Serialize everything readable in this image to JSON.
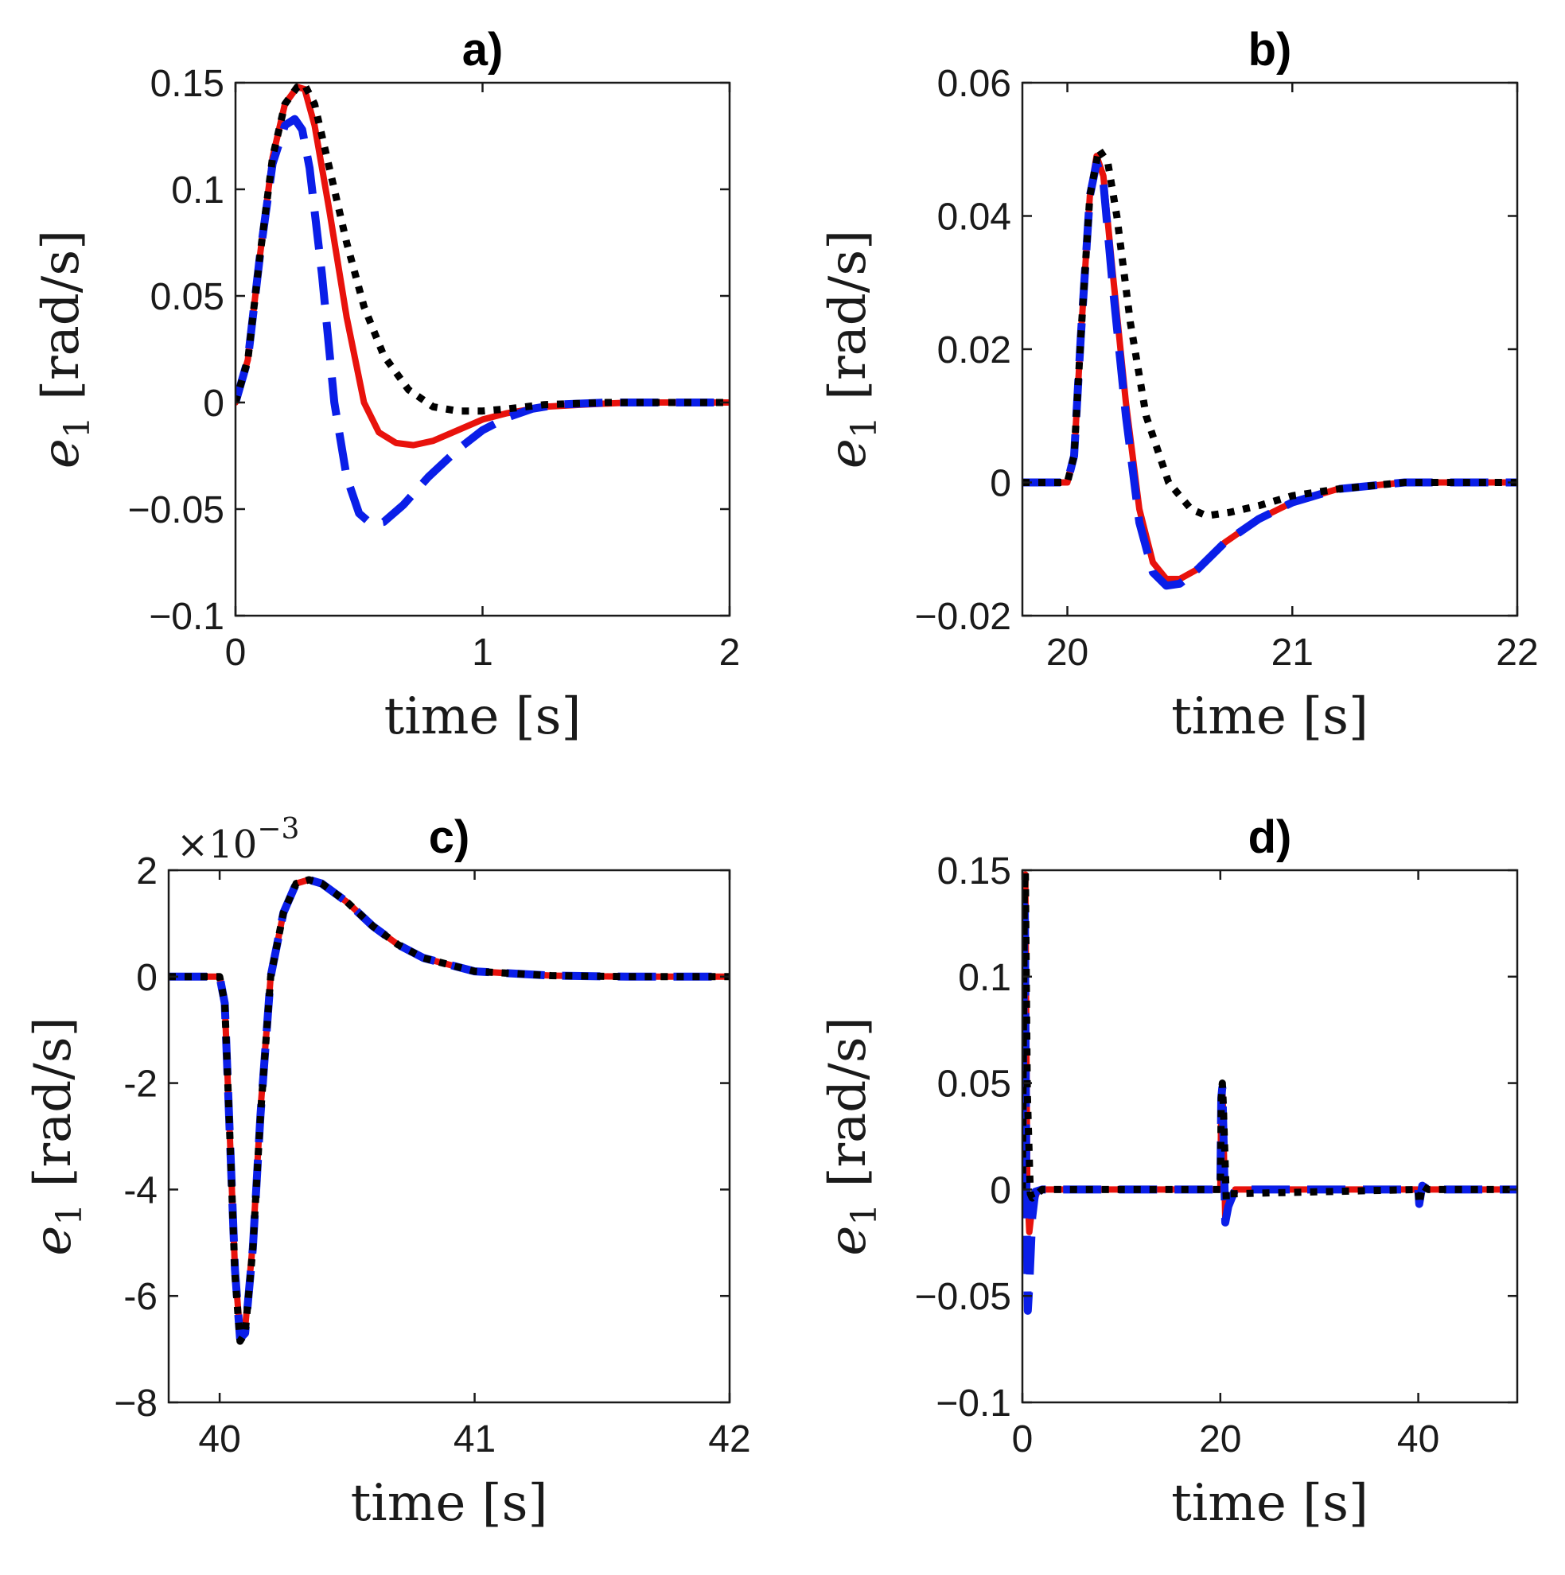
{
  "chart_data": [
    {
      "type": "line",
      "title": "a)",
      "xlabel": "time [s]",
      "ylabel": "e1 [rad/s]",
      "xlim": [
        0,
        2
      ],
      "ylim": [
        -0.1,
        0.15
      ],
      "xticks": [
        0,
        1,
        2
      ],
      "xtick_labels": [
        "0",
        "1",
        "2"
      ],
      "yticks": [
        -0.1,
        -0.05,
        0,
        0.05,
        0.1,
        0.15
      ],
      "ytick_labels": [
        "−0.1",
        "−0.05",
        "0",
        "0.05",
        "0.1",
        "0.15"
      ],
      "y_exponent": "",
      "series": [
        {
          "name": "red solid",
          "style": "solid",
          "color": "#e8120c",
          "x": [
            0,
            0.05,
            0.1,
            0.15,
            0.2,
            0.25,
            0.28,
            0.32,
            0.38,
            0.45,
            0.52,
            0.58,
            0.65,
            0.72,
            0.8,
            0.9,
            1.0,
            1.1,
            1.25,
            1.4,
            1.6,
            1.8,
            2.0
          ],
          "y": [
            0,
            0.02,
            0.07,
            0.115,
            0.14,
            0.148,
            0.147,
            0.13,
            0.09,
            0.04,
            0.0,
            -0.014,
            -0.019,
            -0.02,
            -0.018,
            -0.013,
            -0.008,
            -0.005,
            -0.002,
            -0.001,
            0,
            0,
            0
          ]
        },
        {
          "name": "blue dashed",
          "style": "dashed",
          "color": "#0a1ee8",
          "x": [
            0,
            0.05,
            0.1,
            0.15,
            0.2,
            0.24,
            0.27,
            0.3,
            0.35,
            0.4,
            0.45,
            0.5,
            0.55,
            0.6,
            0.68,
            0.78,
            0.9,
            1.0,
            1.1,
            1.2,
            1.3,
            1.5,
            1.7,
            2.0
          ],
          "y": [
            0,
            0.02,
            0.07,
            0.112,
            0.13,
            0.133,
            0.128,
            0.11,
            0.06,
            0.0,
            -0.035,
            -0.052,
            -0.057,
            -0.056,
            -0.048,
            -0.035,
            -0.022,
            -0.013,
            -0.007,
            -0.003,
            -0.001,
            0,
            0,
            0
          ]
        },
        {
          "name": "black dotted",
          "style": "dotted",
          "color": "#000000",
          "x": [
            0,
            0.05,
            0.1,
            0.15,
            0.2,
            0.25,
            0.28,
            0.32,
            0.38,
            0.45,
            0.52,
            0.6,
            0.7,
            0.8,
            0.9,
            1.0,
            1.1,
            1.25,
            1.5,
            1.8,
            2.0
          ],
          "y": [
            0,
            0.02,
            0.07,
            0.115,
            0.14,
            0.148,
            0.149,
            0.14,
            0.11,
            0.075,
            0.045,
            0.022,
            0.006,
            -0.002,
            -0.004,
            -0.004,
            -0.003,
            -0.001,
            0,
            0,
            0
          ]
        }
      ]
    },
    {
      "type": "line",
      "title": "b)",
      "xlabel": "time [s]",
      "ylabel": "e1 [rad/s]",
      "xlim": [
        19.8,
        22
      ],
      "ylim": [
        -0.02,
        0.06
      ],
      "xticks": [
        20,
        21,
        22
      ],
      "xtick_labels": [
        "20",
        "21",
        "22"
      ],
      "yticks": [
        -0.02,
        0,
        0.02,
        0.04,
        0.06
      ],
      "ytick_labels": [
        "−0.02",
        "0",
        "0.02",
        "0.04",
        "0.06"
      ],
      "y_exponent": "",
      "series": [
        {
          "name": "red solid",
          "style": "solid",
          "color": "#e8120c",
          "x": [
            19.8,
            20.0,
            20.03,
            20.06,
            20.1,
            20.13,
            20.16,
            20.2,
            20.26,
            20.32,
            20.38,
            20.44,
            20.5,
            20.58,
            20.7,
            20.85,
            21.0,
            21.2,
            21.5,
            22.0
          ],
          "y": [
            0,
            0,
            0.004,
            0.022,
            0.043,
            0.049,
            0.046,
            0.032,
            0.012,
            -0.004,
            -0.012,
            -0.0145,
            -0.0145,
            -0.013,
            -0.009,
            -0.0055,
            -0.003,
            -0.001,
            0,
            0
          ]
        },
        {
          "name": "blue dashed",
          "style": "dashed",
          "color": "#0a1ee8",
          "x": [
            19.8,
            20.0,
            20.03,
            20.06,
            20.1,
            20.13,
            20.16,
            20.2,
            20.26,
            20.32,
            20.38,
            20.44,
            20.5,
            20.58,
            20.7,
            20.85,
            21.0,
            21.2,
            21.5,
            22.0
          ],
          "y": [
            0,
            0,
            0.004,
            0.022,
            0.043,
            0.048,
            0.045,
            0.03,
            0.01,
            -0.006,
            -0.0135,
            -0.0155,
            -0.0152,
            -0.013,
            -0.009,
            -0.0055,
            -0.003,
            -0.001,
            0,
            0
          ]
        },
        {
          "name": "black dotted",
          "style": "dotted",
          "color": "#000000",
          "x": [
            19.8,
            20.0,
            20.03,
            20.06,
            20.1,
            20.14,
            20.18,
            20.22,
            20.28,
            20.35,
            20.45,
            20.55,
            20.62,
            20.72,
            20.85,
            21.0,
            21.2,
            21.5,
            22.0
          ],
          "y": [
            0,
            0,
            0.004,
            0.022,
            0.043,
            0.05,
            0.048,
            0.04,
            0.024,
            0.01,
            0.0,
            -0.004,
            -0.005,
            -0.0045,
            -0.0035,
            -0.002,
            -0.001,
            0,
            0
          ]
        }
      ]
    },
    {
      "type": "line",
      "title": "c)",
      "xlabel": "time [s]",
      "ylabel": "e1 [rad/s]",
      "xlim": [
        39.8,
        42
      ],
      "ylim": [
        -8,
        2
      ],
      "xticks": [
        40,
        41,
        42
      ],
      "xtick_labels": [
        "40",
        "41",
        "42"
      ],
      "yticks": [
        -8,
        -6,
        -4,
        -2,
        0,
        2
      ],
      "ytick_labels": [
        "−8",
        "-6",
        "-4",
        "-2",
        "0",
        "2"
      ],
      "y_exponent": "×10",
      "y_exponent_power": "−3",
      "series": [
        {
          "name": "red solid",
          "style": "solid",
          "color": "#e8120c",
          "x": [
            39.8,
            40.0,
            40.02,
            40.04,
            40.06,
            40.08,
            40.1,
            40.13,
            40.16,
            40.2,
            40.25,
            40.3,
            40.35,
            40.4,
            40.5,
            40.6,
            40.7,
            40.8,
            41.0,
            41.3,
            41.6,
            42.0
          ],
          "y": [
            0,
            0,
            -0.5,
            -3.0,
            -5.5,
            -6.7,
            -6.6,
            -5.0,
            -2.5,
            0.0,
            1.2,
            1.75,
            1.82,
            1.75,
            1.4,
            0.95,
            0.6,
            0.35,
            0.1,
            0.02,
            0,
            0
          ]
        },
        {
          "name": "blue dashed",
          "style": "dashed",
          "color": "#0a1ee8",
          "x": [
            39.8,
            40.0,
            40.02,
            40.04,
            40.06,
            40.08,
            40.1,
            40.13,
            40.16,
            40.2,
            40.25,
            40.3,
            40.35,
            40.4,
            40.5,
            40.6,
            40.7,
            40.8,
            41.0,
            41.3,
            41.6,
            42.0
          ],
          "y": [
            0,
            0,
            -0.5,
            -3.0,
            -5.5,
            -6.8,
            -6.7,
            -5.1,
            -2.6,
            0.0,
            1.2,
            1.75,
            1.82,
            1.75,
            1.4,
            0.95,
            0.6,
            0.35,
            0.1,
            0.02,
            0,
            0
          ]
        },
        {
          "name": "black dotted",
          "style": "dotted",
          "color": "#000000",
          "x": [
            39.8,
            40.0,
            40.02,
            40.04,
            40.06,
            40.08,
            40.1,
            40.13,
            40.16,
            40.2,
            40.25,
            40.3,
            40.35,
            40.4,
            40.5,
            40.6,
            40.7,
            40.8,
            41.0,
            41.3,
            41.6,
            42.0
          ],
          "y": [
            0,
            0,
            -0.5,
            -3.0,
            -5.6,
            -6.85,
            -6.7,
            -5.1,
            -2.6,
            0.0,
            1.2,
            1.75,
            1.82,
            1.75,
            1.4,
            0.95,
            0.6,
            0.35,
            0.1,
            0.02,
            0,
            0
          ]
        }
      ]
    },
    {
      "type": "line",
      "title": "d)",
      "xlabel": "time [s]",
      "ylabel": "e1 [rad/s]",
      "xlim": [
        0,
        50
      ],
      "ylim": [
        -0.1,
        0.15
      ],
      "xticks": [
        0,
        20,
        40
      ],
      "xtick_labels": [
        "0",
        "20",
        "40"
      ],
      "yticks": [
        -0.1,
        -0.05,
        0,
        0.05,
        0.1,
        0.15
      ],
      "ytick_labels": [
        "−0.1",
        "−0.05",
        "0",
        "0.05",
        "0.1",
        "0.15"
      ],
      "y_exponent": "",
      "series": [
        {
          "name": "red solid",
          "style": "solid",
          "color": "#e8120c",
          "x": [
            0,
            0.1,
            0.2,
            0.3,
            0.5,
            0.7,
            1.0,
            1.5,
            2.0,
            20.0,
            20.1,
            20.2,
            20.3,
            20.5,
            20.8,
            21.5,
            40.0,
            40.1,
            40.4,
            41.0,
            50.0
          ],
          "y": [
            0,
            0.07,
            0.14,
            0.148,
            0.0,
            -0.02,
            -0.008,
            -0.001,
            0,
            0,
            0.043,
            0.049,
            0.032,
            -0.0145,
            -0.008,
            0,
            0,
            -0.0067,
            0.0018,
            0,
            0
          ]
        },
        {
          "name": "blue dashed",
          "style": "dashed",
          "color": "#0a1ee8",
          "x": [
            0,
            0.1,
            0.2,
            0.25,
            0.4,
            0.55,
            0.7,
            1.0,
            1.3,
            2.0,
            20.0,
            20.1,
            20.2,
            20.3,
            20.5,
            20.8,
            21.5,
            40.0,
            40.1,
            40.4,
            41.0,
            50.0
          ],
          "y": [
            0,
            0.07,
            0.13,
            0.133,
            0.0,
            -0.057,
            -0.045,
            -0.013,
            -0.001,
            0,
            0,
            0.043,
            0.048,
            0.03,
            -0.0155,
            -0.008,
            0,
            0,
            -0.0068,
            0.0018,
            0,
            0
          ]
        },
        {
          "name": "black dotted",
          "style": "dotted",
          "color": "#000000",
          "x": [
            0,
            0.1,
            0.2,
            0.3,
            0.5,
            0.8,
            1.0,
            2.0,
            20.0,
            20.1,
            20.2,
            20.3,
            20.6,
            21.0,
            40.0,
            40.1,
            40.4,
            41.0,
            50.0
          ],
          "y": [
            0,
            0.07,
            0.14,
            0.149,
            0.045,
            -0.002,
            -0.004,
            0,
            0,
            0.043,
            0.05,
            0.04,
            -0.005,
            -0.002,
            0,
            -0.0068,
            0.0018,
            0,
            0
          ]
        }
      ]
    }
  ]
}
